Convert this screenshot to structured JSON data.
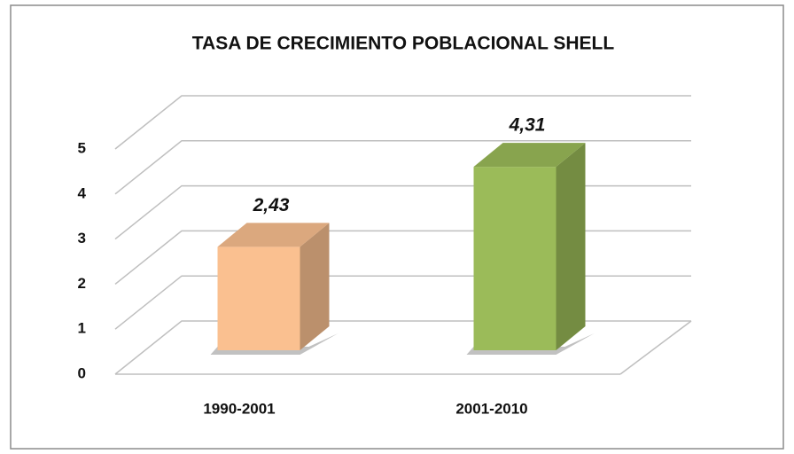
{
  "chart_data": {
    "type": "bar3d",
    "title": "TASA DE CRECIMIENTO POBLACIONAL SHELL",
    "categories": [
      "1990-2001",
      "2001-2010"
    ],
    "values": [
      2.43,
      4.31
    ],
    "value_labels": [
      "2,43",
      "4,31"
    ],
    "colors": [
      "#fac090",
      "#9bbb59"
    ],
    "ylim": [
      0,
      5
    ],
    "yticks": [
      0,
      1,
      2,
      3,
      4,
      5
    ],
    "grid": true
  }
}
